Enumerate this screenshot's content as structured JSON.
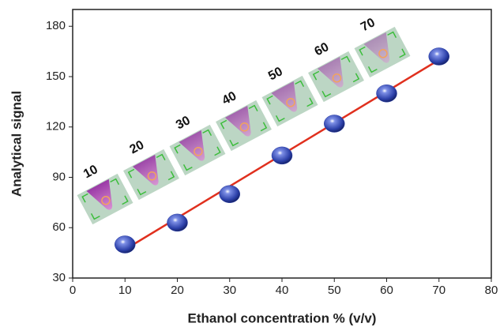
{
  "chart_data": {
    "type": "scatter",
    "x_label": "Ethanol concentration % (v/v)",
    "y_label": "Analytical signal",
    "x": [
      10,
      20,
      30,
      40,
      50,
      60,
      70
    ],
    "values": [
      50,
      63,
      80,
      103,
      122,
      140,
      162
    ],
    "color": "#2b3fa8",
    "fit_line": {
      "x": [
        10,
        70
      ],
      "values": [
        47,
        160
      ],
      "color": "#e0301e"
    },
    "annotations": [
      "10",
      "20",
      "30",
      "40",
      "50",
      "60",
      "70"
    ],
    "xlim": [
      0,
      80
    ],
    "xticks": [
      0,
      10,
      20,
      30,
      40,
      50,
      60,
      70,
      80
    ],
    "ylim": [
      30,
      190
    ],
    "yticks": [
      30,
      60,
      90,
      120,
      150,
      180
    ]
  }
}
